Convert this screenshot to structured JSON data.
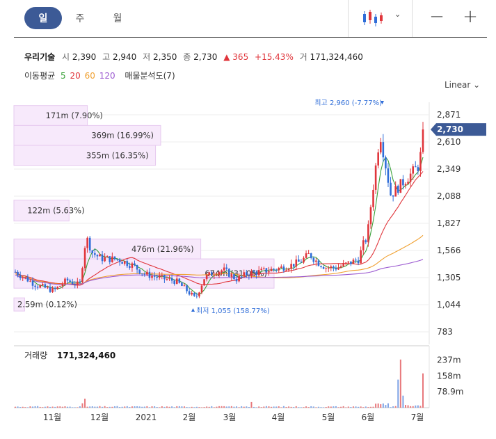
{
  "toolbar": {
    "tabs": [
      {
        "label": "일",
        "active": true
      },
      {
        "label": "주",
        "active": false
      },
      {
        "label": "월",
        "active": false
      }
    ],
    "chart_type_icon": "candlestick-icon",
    "zoom_out": "−",
    "zoom_in": "+"
  },
  "quote": {
    "name": "우리기술",
    "open_label": "시",
    "open": "2,390",
    "high_label": "고",
    "high": "2,940",
    "low_label": "저",
    "low": "2,350",
    "close_label": "종",
    "close": "2,730",
    "change": "▲ 365",
    "change_pct": "+15.43%",
    "volume_label": "거",
    "volume": "171,324,460"
  },
  "indicators": {
    "ma_label": "이동평균",
    "ma": [
      {
        "period": "5",
        "color": "#3aa13a"
      },
      {
        "period": "20",
        "color": "#e0353b"
      },
      {
        "period": "60",
        "color": "#f0a030"
      },
      {
        "period": "120",
        "color": "#9b59d0"
      }
    ],
    "vp_label": "매물분석도(7)"
  },
  "scale": "Linear",
  "chart_data": {
    "type": "candlestick",
    "y_ticks": [
      "2,871",
      "2,610",
      "2,349",
      "2,088",
      "1,827",
      "1,566",
      "1,305",
      "1,044",
      "783"
    ],
    "ylim": [
      783,
      2960
    ],
    "x_ticks": [
      "11월",
      "12월",
      "2021",
      "2월",
      "3월",
      "4월",
      "5월",
      "6월",
      "7월"
    ],
    "current_price": "2,730",
    "high_annotation": "최고 2,960 (-7.77%)",
    "low_annotation": "최저 1,055 (158.77%)",
    "volume_profile": [
      {
        "label": "171m (7.90%)",
        "price_low": 2768,
        "price_high": 2960,
        "share": 7.9
      },
      {
        "label": "369m (16.99%)",
        "price_low": 2577,
        "price_high": 2768,
        "share": 16.99
      },
      {
        "label": "355m (16.35%)",
        "price_low": 2385,
        "price_high": 2577,
        "share": 16.35
      },
      {
        "label": "122m (5.63%)",
        "price_low": 1849,
        "price_high": 2050,
        "share": 5.63
      },
      {
        "label": "476m (21.96%)",
        "price_low": 1485,
        "price_high": 1676,
        "share": 21.96
      },
      {
        "label": "674m (31.05%)",
        "price_low": 1203,
        "price_high": 1485,
        "share": 31.05
      },
      {
        "label": "2.59m (0.12%)",
        "price_low": 983,
        "price_high": 1110,
        "share": 0.12
      }
    ],
    "volume": {
      "title": "거래량",
      "latest": "171,324,460",
      "y_ticks": [
        "237m",
        "158m",
        "78.9m"
      ],
      "ylim": [
        0,
        260
      ]
    }
  }
}
